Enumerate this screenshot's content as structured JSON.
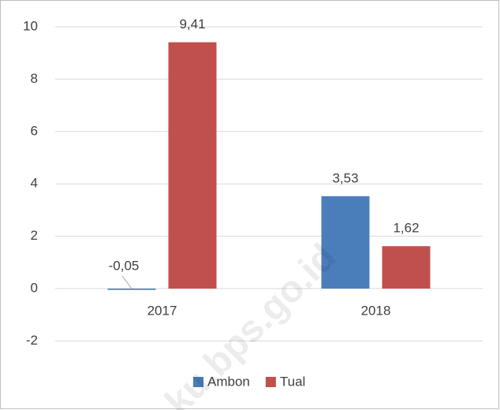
{
  "chart_data": {
    "type": "bar",
    "categories": [
      "2017",
      "2018"
    ],
    "series": [
      {
        "name": "Ambon",
        "color": "#4a7ebb",
        "values": [
          -0.05,
          3.53
        ],
        "value_labels": [
          "-0,05",
          "3,53"
        ]
      },
      {
        "name": "Tual",
        "color": "#c0504d",
        "values": [
          9.41,
          1.62
        ],
        "value_labels": [
          "9,41",
          "1,62"
        ]
      }
    ],
    "ylim": [
      -2,
      10
    ],
    "yticks": [
      -2,
      0,
      2,
      4,
      6,
      8,
      10
    ],
    "grid": true,
    "legend": "bottom",
    "watermark": "ku.bps.go.id"
  }
}
